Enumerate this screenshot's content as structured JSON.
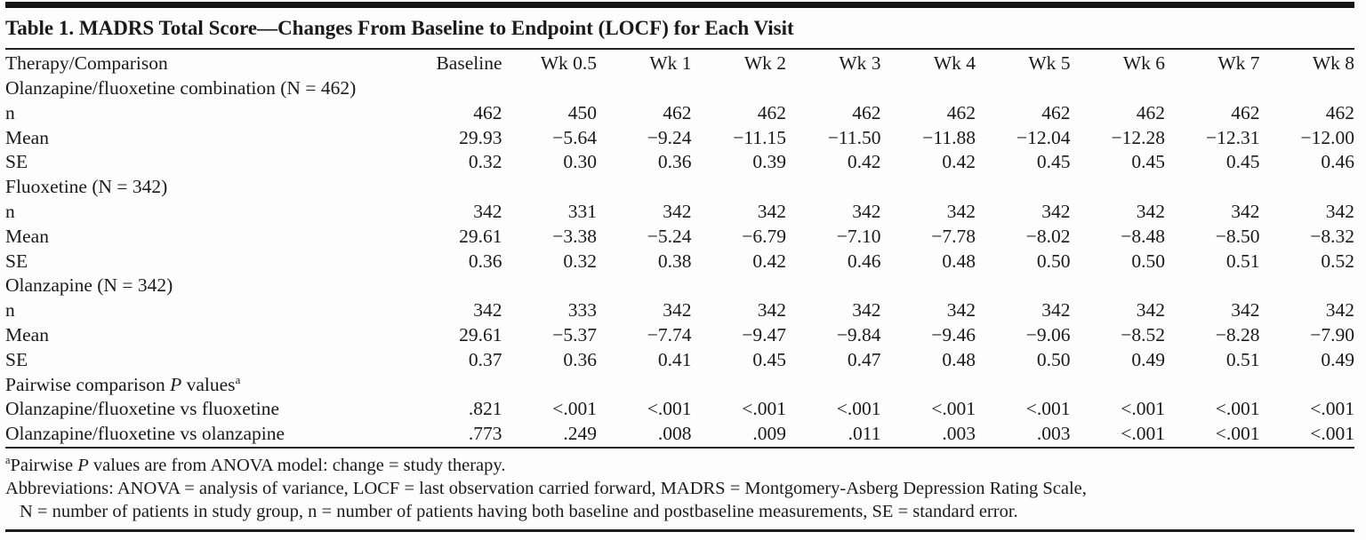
{
  "colors": {
    "text": "#1a1a1a",
    "rule": "#222222",
    "background": "#fdfdfd"
  },
  "table": {
    "title": "Table 1. MADRS Total Score—Changes From Baseline to Endpoint (LOCF) for Each Visit",
    "columns": [
      "Therapy/Comparison",
      "Baseline",
      "Wk 0.5",
      "Wk 1",
      "Wk 2",
      "Wk 3",
      "Wk 4",
      "Wk 5",
      "Wk 6",
      "Wk 7",
      "Wk 8"
    ],
    "groups": [
      {
        "label_parts": [
          {
            "t": "Olanzapine/fluoxetine combination (N = 462)"
          }
        ],
        "rows": [
          {
            "label": "n",
            "style": "integer",
            "values": [
              "462",
              "450",
              "462",
              "462",
              "462",
              "462",
              "462",
              "462",
              "462",
              "462"
            ]
          },
          {
            "label": "Mean",
            "style": "decimal",
            "values": [
              "29.93",
              "−5.64",
              "−9.24",
              "−11.15",
              "−11.50",
              "−11.88",
              "−12.04",
              "−12.28",
              "−12.31",
              "−12.00"
            ]
          },
          {
            "label": "SE",
            "style": "decimal",
            "values": [
              "0.32",
              "0.30",
              "0.36",
              "0.39",
              "0.42",
              "0.42",
              "0.45",
              "0.45",
              "0.45",
              "0.46"
            ]
          }
        ]
      },
      {
        "label_parts": [
          {
            "t": "Fluoxetine (N = 342)"
          }
        ],
        "rows": [
          {
            "label": "n",
            "style": "integer",
            "values": [
              "342",
              "331",
              "342",
              "342",
              "342",
              "342",
              "342",
              "342",
              "342",
              "342"
            ]
          },
          {
            "label": "Mean",
            "style": "decimal",
            "values": [
              "29.61",
              "−3.38",
              "−5.24",
              "−6.79",
              "−7.10",
              "−7.78",
              "−8.02",
              "−8.48",
              "−8.50",
              "−8.32"
            ]
          },
          {
            "label": "SE",
            "style": "decimal",
            "values": [
              "0.36",
              "0.32",
              "0.38",
              "0.42",
              "0.46",
              "0.48",
              "0.50",
              "0.50",
              "0.51",
              "0.52"
            ]
          }
        ]
      },
      {
        "label_parts": [
          {
            "t": "Olanzapine (N = 342)"
          }
        ],
        "rows": [
          {
            "label": "n",
            "style": "integer",
            "values": [
              "342",
              "333",
              "342",
              "342",
              "342",
              "342",
              "342",
              "342",
              "342",
              "342"
            ]
          },
          {
            "label": "Mean",
            "style": "decimal",
            "values": [
              "29.61",
              "−5.37",
              "−7.74",
              "−9.47",
              "−9.84",
              "−9.46",
              "−9.06",
              "−8.52",
              "−8.28",
              "−7.90"
            ]
          },
          {
            "label": "SE",
            "style": "decimal",
            "values": [
              "0.37",
              "0.36",
              "0.41",
              "0.45",
              "0.47",
              "0.48",
              "0.50",
              "0.49",
              "0.51",
              "0.49"
            ]
          }
        ]
      },
      {
        "label_parts": [
          {
            "t": "Pairwise comparison "
          },
          {
            "t": "P",
            "style": "italic"
          },
          {
            "t": " values"
          },
          {
            "t": "a",
            "style": "sup"
          }
        ],
        "rows": [
          {
            "label": "Olanzapine/fluoxetine vs fluoxetine",
            "style": "decimal",
            "values": [
              ".821",
              "<.001",
              "<.001",
              "<.001",
              "<.001",
              "<.001",
              "<.001",
              "<.001",
              "<.001",
              "<.001"
            ]
          },
          {
            "label": "Olanzapine/fluoxetine vs olanzapine",
            "style": "decimal",
            "values": [
              ".773",
              ".249",
              ".008",
              ".009",
              ".011",
              ".003",
              ".003",
              "<.001",
              "<.001",
              "<.001"
            ]
          }
        ]
      }
    ]
  },
  "footnotes": [
    {
      "indent": false,
      "parts": [
        {
          "t": "a",
          "style": "sup"
        },
        {
          "t": "Pairwise "
        },
        {
          "t": "P",
          "style": "italic"
        },
        {
          "t": " values are from ANOVA model: change = study therapy."
        }
      ]
    },
    {
      "indent": false,
      "parts": [
        {
          "t": "Abbreviations: ANOVA = analysis of variance, LOCF = last observation carried forward, MADRS = Montgomery-Asberg Depression Rating Scale,"
        }
      ]
    },
    {
      "indent": true,
      "parts": [
        {
          "t": "N = number of patients in study group, n = number of patients having both baseline and postbaseline measurements, SE = standard error."
        }
      ]
    }
  ]
}
